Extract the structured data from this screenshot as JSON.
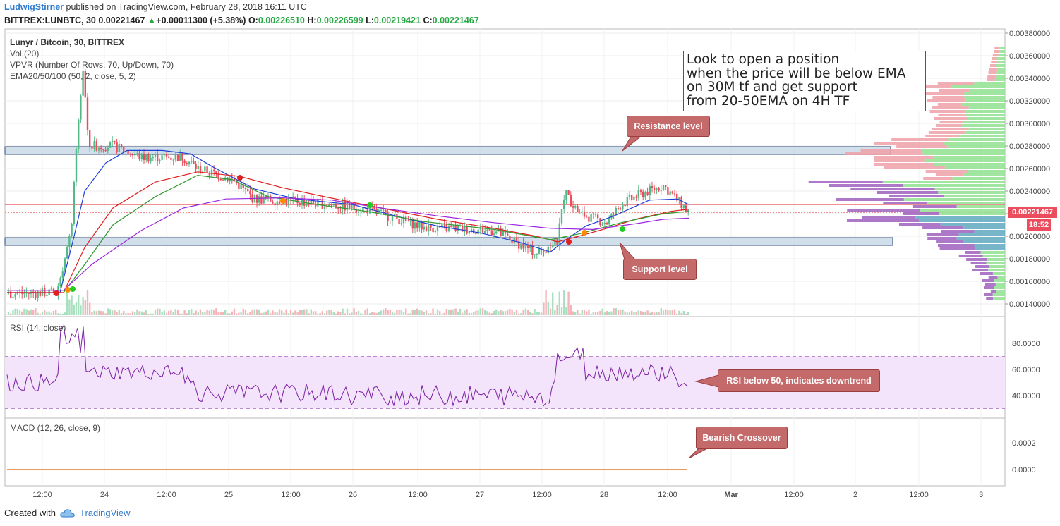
{
  "header": {
    "author": "LudwigStirner",
    "published": "published on TradingView.com, February 28, 2018 16:11 UTC",
    "symbol": "BITTREX:LUNBTC, 30",
    "last": "0.00221467",
    "change": "+0.00011300 (+5.38%)",
    "o_label": "O:",
    "o": "0.00226510",
    "h_label": "H:",
    "h": "0.00226599",
    "l_label": "L:",
    "l": "0.00219421",
    "c_label": "C:",
    "c": "0.00221467"
  },
  "legend": {
    "title": "Lunyr / Bitcoin, 30, BITTREX",
    "vol": "Vol (20)",
    "vpvr": "VPVR (Number Of Rows, 70, Up/Down, 70)",
    "ema": "EMA20/50/100 (50, 2, close, 5, 2)",
    "rsi": "RSI (14, close)",
    "macd": "MACD (12, 26, close, 9)"
  },
  "price_axis": [
    "0.00380000",
    "0.00360000",
    "0.00340000",
    "0.00320000",
    "0.00300000",
    "0.00280000",
    "0.00260000",
    "0.00240000",
    "0.00220000",
    "0.00200000",
    "0.00180000",
    "0.00160000",
    "0.00140000"
  ],
  "current_price_tag": "0.00221467",
  "time_tag": "18:52",
  "rsi_axis": [
    "80.0000",
    "60.0000",
    "40.0000"
  ],
  "macd_axis": [
    "0.0002",
    "0.0000"
  ],
  "time_axis": [
    "12:00",
    "24",
    "12:00",
    "25",
    "12:00",
    "26",
    "12:00",
    "27",
    "12:00",
    "28",
    "12:00",
    "Mar",
    "12:00",
    "2",
    "12:00",
    "3"
  ],
  "annotations": {
    "note": [
      "Look to open a position",
      "when the price will be below EMA",
      "on 30M tf and get support",
      "from 20-50EMA on 4H TF"
    ],
    "resistance": "Resistance level",
    "support": "Support level",
    "rsi": "RSI below 50, indicates downtrend",
    "macd": "Bearish Crossover"
  },
  "footer": {
    "created": "Created with",
    "brand": "TradingView"
  },
  "colors": {
    "up": "#53b987",
    "down": "#eb4d5c",
    "ema20": "#1e3fd6",
    "ema50": "#2e9a2e",
    "ema100": "#9c27e0",
    "ema_red": "#e02020",
    "callout": "#c56a6b",
    "rsi_band": "#f3e3fb",
    "rsi_line": "#7b1fa2",
    "macd_line": "#2196f3",
    "signal_line": "#ff6d00",
    "hist": "#c2185b"
  }
}
